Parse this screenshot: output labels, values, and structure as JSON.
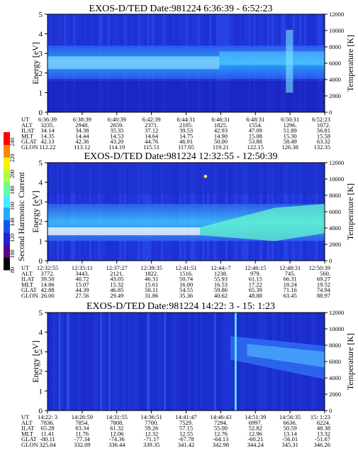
{
  "colorbar": {
    "label": "Second Harmonic Current",
    "ticks": [
      "240",
      "220",
      "200",
      "180",
      "160",
      "140",
      "120",
      "100",
      "80"
    ],
    "colors": [
      "#000000",
      "#5a0088",
      "#2222cc",
      "#1155ee",
      "#22aaff",
      "#44eeff",
      "#66ff99",
      "#aaff44",
      "#ffee00",
      "#ff8800",
      "#ff0000"
    ]
  },
  "chart_data": [
    {
      "type": "heatmap",
      "title": "EXOS-D/TED   Date:981224   6:36:39 - 6:52:23",
      "ylabel": "Energy [eV]",
      "y2label": "Temperature [K]",
      "ylim": [
        0,
        5
      ],
      "y2lim": [
        0,
        12000
      ],
      "yticks": [
        "0",
        "1",
        "2",
        "3",
        "4",
        "5"
      ],
      "y2ticks": [
        "0",
        "2000",
        "4000",
        "6000",
        "8000",
        "10000",
        "12000"
      ],
      "ephemeris_labels": [
        "UT",
        "ALT",
        "ILAT",
        "MLT",
        "GLAT",
        "GLON"
      ],
      "ephemeris": [
        [
          "6:36:39",
          "3235.",
          "34.14",
          "14.35",
          "42.13",
          "112.22"
        ],
        [
          "6:38:39",
          "2948.",
          "34.38",
          "14.44",
          "42.36",
          "113.12"
        ],
        [
          "6:40:39",
          "2659.",
          "35.35",
          "14.53",
          "43.20",
          "114.19"
        ],
        [
          "6:42:39",
          "2371.",
          "37.12",
          "14.64",
          "44.76",
          "115.51"
        ],
        [
          "6:44:31",
          "2105.",
          "39.53",
          "14.75",
          "46.91",
          "117.05"
        ],
        [
          "6:46:31",
          "1825.",
          "42.93",
          "14.90",
          "50.00",
          "119.21"
        ],
        [
          "6:48:31",
          "1554.",
          "47.09",
          "15.08",
          "53.88",
          "122.15"
        ],
        [
          "6:50:31",
          "1296.",
          "51.89",
          "15.30",
          "58.49",
          "126.38"
        ],
        [
          "6:52:23",
          "1072.",
          "56.81",
          "15.58",
          "63.32",
          "132.35"
        ]
      ]
    },
    {
      "type": "heatmap",
      "title": "EXOS-D/TED   Date:981224   12:32:55 - 12:50:39",
      "ylabel": "Energy [eV]",
      "y2label": "Temperature [K]",
      "ylim": [
        0,
        5
      ],
      "y2lim": [
        0,
        12000
      ],
      "yticks": [
        "0",
        "1",
        "2",
        "3",
        "4",
        "5"
      ],
      "y2ticks": [
        "0",
        "2000",
        "4000",
        "6000",
        "8000",
        "10000",
        "12000"
      ],
      "ephemeris_labels": [
        "UT",
        "ALT",
        "ILAT",
        "MLT",
        "GLAT",
        "GLON"
      ],
      "ephemeris": [
        [
          "12:32:55",
          "3772.",
          "39.50",
          "14.86",
          "42.88",
          "26.00"
        ],
        [
          "12:35:11",
          "3443.",
          "40.72",
          "15.07",
          "44.39",
          "27.56"
        ],
        [
          "12:37:27",
          "2121.",
          "43.05",
          "15.32",
          "46.85",
          "29.49"
        ],
        [
          "12:39:35",
          "1822.",
          "46.31",
          "15.61",
          "50.11",
          "31.86"
        ],
        [
          "12:41:51",
          "1516.",
          "50.74",
          "16.00",
          "54.55",
          "35.36"
        ],
        [
          "12:44:-7",
          "1238.",
          "55.93",
          "16.53",
          "59.86",
          "40.62"
        ],
        [
          "12:46:15",
          "979.",
          "61.15",
          "17.22",
          "65.39",
          "48.88"
        ],
        [
          "12:48:31",
          "745.",
          "66.31",
          "18.24",
          "71.16",
          "63.45"
        ],
        [
          "12:50:39",
          "560.",
          "69.27",
          "19.52",
          "74.94",
          "88.97"
        ]
      ]
    },
    {
      "type": "heatmap",
      "title": "EXOS-D/TED   Date:981224   14:22: 3 - 15: 1:23",
      "ylabel": "Energy [eV]",
      "y2label": "Temperature [K]",
      "ylim": [
        0,
        5
      ],
      "y2lim": [
        0,
        12000
      ],
      "yticks": [
        "0",
        "1",
        "2",
        "3",
        "4",
        "5"
      ],
      "y2ticks": [
        "0",
        "2000",
        "4000",
        "6000",
        "8000",
        "10000",
        "12000"
      ],
      "ephemeris_labels": [
        "UT",
        "ALT",
        "ILAT",
        "MLT",
        "GLAT",
        "GLON"
      ],
      "ephemeris": [
        [
          "14:22: 3",
          "7836.",
          "65.28",
          "11.41",
          "-80.11",
          "325.04"
        ],
        [
          "14:26:59",
          "7854.",
          "63.34",
          "11.76",
          "-77.34",
          "332.09"
        ],
        [
          "14:31:55",
          "7808.",
          "61.32",
          "12.06",
          "-74.36",
          "336.44"
        ],
        [
          "14:36:51",
          "7700.",
          "59.26",
          "12.32",
          "-71.17",
          "339.35"
        ],
        [
          "14:41:47",
          "7529.",
          "57.15",
          "12.55",
          "-67.78",
          "341.42"
        ],
        [
          "14:46:43",
          "7294.",
          "55.00",
          "12.76",
          "-64.13",
          "342.98"
        ],
        [
          "14:51:39",
          "6997.",
          "52.82",
          "12.96",
          "-60.21",
          "344.24"
        ],
        [
          "14:56:35",
          "6636.",
          "50.59",
          "13.14",
          "-56.01",
          "345.31"
        ],
        [
          "15: 1:23",
          "6224.",
          "48.38",
          "13.32",
          "-51.67",
          "346.26"
        ]
      ]
    }
  ]
}
